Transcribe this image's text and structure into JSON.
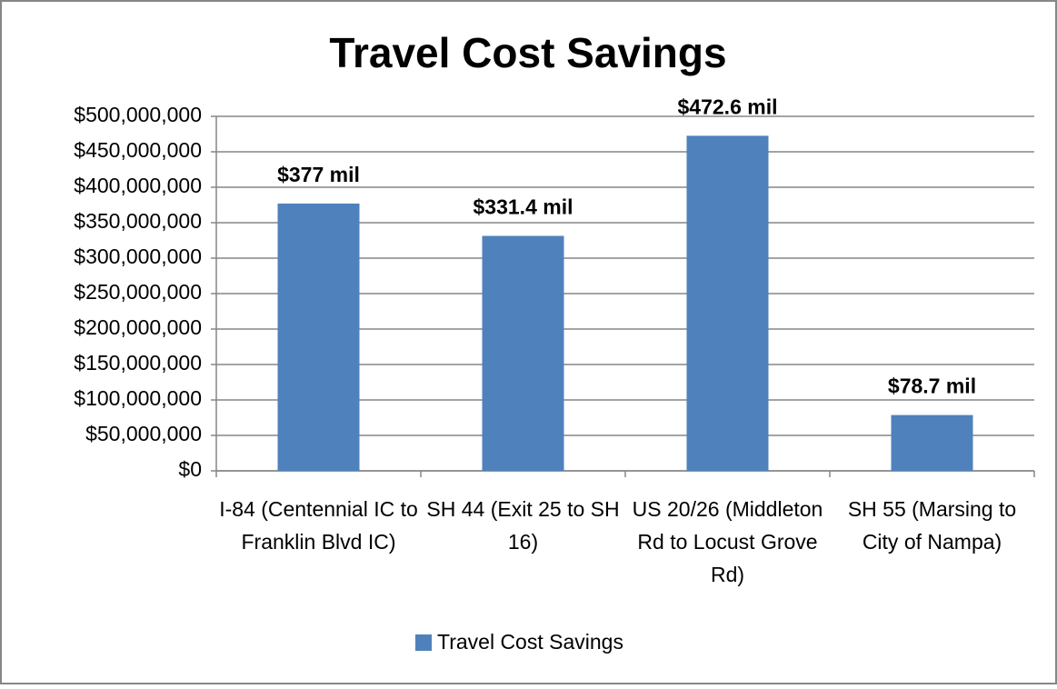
{
  "chart_data": {
    "type": "bar",
    "title": "Travel Cost Savings",
    "categories": [
      "I-84 (Centennial IC to Franklin Blvd IC)",
      "SH 44 (Exit 25 to SH 16)",
      "US 20/26 (Middleton Rd to Locust Grove Rd)",
      "SH 55 (Marsing to City of Nampa)"
    ],
    "series": [
      {
        "name": "Travel Cost Savings",
        "color": "#4f81bd",
        "values": [
          377000000,
          331400000,
          472600000,
          78700000
        ],
        "value_labels": [
          "$377 mil",
          "$331.4 mil",
          "$472.6 mil",
          "$78.7 mil"
        ]
      }
    ],
    "ylim": [
      0,
      500000000
    ],
    "yticks": [
      {
        "value": 0,
        "label": "$0"
      },
      {
        "value": 50000000,
        "label": "$50,000,000"
      },
      {
        "value": 100000000,
        "label": "$100,000,000"
      },
      {
        "value": 150000000,
        "label": "$150,000,000"
      },
      {
        "value": 200000000,
        "label": "$200,000,000"
      },
      {
        "value": 250000000,
        "label": "$250,000,000"
      },
      {
        "value": 300000000,
        "label": "$300,000,000"
      },
      {
        "value": 350000000,
        "label": "$350,000,000"
      },
      {
        "value": 400000000,
        "label": "$400,000,000"
      },
      {
        "value": 450000000,
        "label": "$450,000,000"
      },
      {
        "value": 500000000,
        "label": "$500,000,000"
      }
    ],
    "grid": true,
    "legend": "bottom"
  }
}
